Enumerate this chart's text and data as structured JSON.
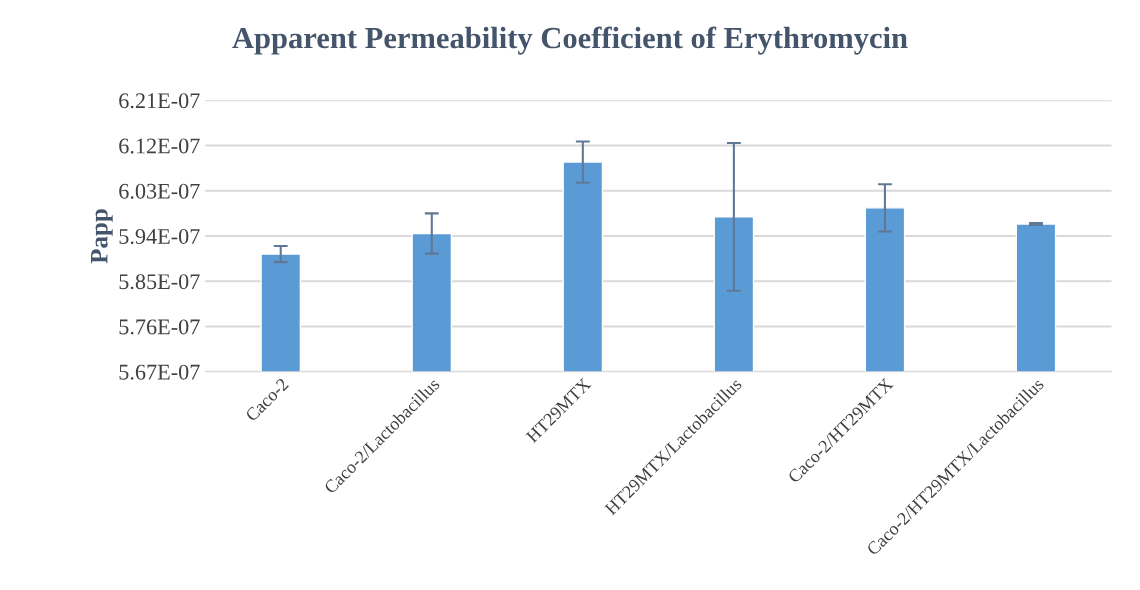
{
  "chart_data": {
    "type": "bar",
    "title": "Apparent Permeability Coefficient of Erythromycin",
    "ylabel": "Papp",
    "categories": [
      "Caco-2",
      "Caco-2/Lactobacillus",
      "HT29MTX",
      "HT29MTX/Lactobacillus",
      "Caco-2/HT29MTX",
      "Caco-2/HT29MTX/Lactobacillus"
    ],
    "values": [
      5.904e-07,
      5.945e-07,
      6.087e-07,
      5.978e-07,
      5.996e-07,
      5.964e-07
    ],
    "errors": [
      1.6e-09,
      4e-09,
      4.1e-09,
      1.47e-08,
      4.7e-09,
      2e-10
    ],
    "color": "#5b9bd5",
    "ylim": [
      5.67e-07,
      6.21e-07
    ],
    "yticks": [
      {
        "value": 5.67e-07,
        "label": "5.67E-07"
      },
      {
        "value": 5.76e-07,
        "label": "5.76E-07"
      },
      {
        "value": 5.85e-07,
        "label": "5.85E-07"
      },
      {
        "value": 5.94e-07,
        "label": "5.94E-07"
      },
      {
        "value": 6.03e-07,
        "label": "6.03E-07"
      },
      {
        "value": 6.12e-07,
        "label": "6.12E-07"
      },
      {
        "value": 6.21e-07,
        "label": "6.21E-07"
      }
    ],
    "grid": "y"
  }
}
